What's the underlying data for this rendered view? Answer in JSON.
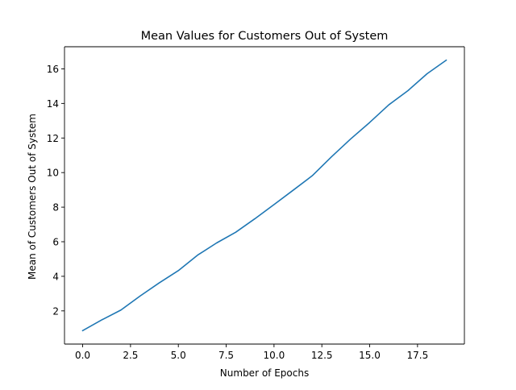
{
  "chart_data": {
    "type": "line",
    "title": "Mean Values for Customers Out of System",
    "xlabel": "Number of Epochs",
    "ylabel": "Mean of Customers Out of System",
    "xlim": [
      -0.95,
      19.95
    ],
    "ylim": [
      0.08,
      17.28
    ],
    "xticks": [
      0.0,
      2.5,
      5.0,
      7.5,
      10.0,
      12.5,
      15.0,
      17.5
    ],
    "xtick_labels": [
      "0.0",
      "2.5",
      "5.0",
      "7.5",
      "10.0",
      "12.5",
      "15.0",
      "17.5"
    ],
    "yticks": [
      2,
      4,
      6,
      8,
      10,
      12,
      14,
      16
    ],
    "ytick_labels": [
      "2",
      "4",
      "6",
      "8",
      "10",
      "12",
      "14",
      "16"
    ],
    "grid": false,
    "legend": "none",
    "series": [
      {
        "color": "#1f77b4",
        "x": [
          0,
          1,
          2,
          3,
          4,
          5,
          6,
          7,
          8,
          9,
          10,
          11,
          12,
          13,
          14,
          15,
          16,
          17,
          18,
          19
        ],
        "y": [
          0.86,
          1.48,
          2.05,
          2.86,
          3.62,
          4.33,
          5.22,
          5.93,
          6.55,
          7.33,
          8.15,
          8.98,
          9.82,
          10.91,
          11.94,
          12.9,
          13.92,
          14.74,
          15.72,
          16.5
        ]
      }
    ]
  }
}
